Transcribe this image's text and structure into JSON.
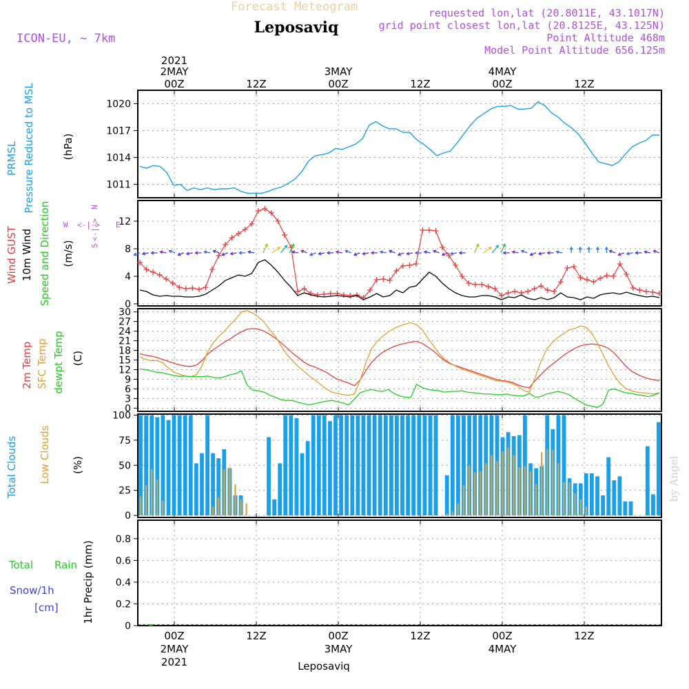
{
  "header": {
    "forecast_title": "Forecast Meteogram",
    "location": "Leposaviq",
    "model": "ICON-EU, ~ 7km",
    "requested": "requested lon,lat (20.8011E, 43.1017N)",
    "grid_point": "grid point closest lon,lat (20.8125E, 43.125N)",
    "point_altitude": "Point Altitude 468m",
    "model_altitude": "Model Point Altitude 656.125m",
    "signature": "by Angel",
    "footer_location": "Leposaviq"
  },
  "colors": {
    "pressure": "#1aa0e8",
    "gust": "#e83c3c",
    "wind": "#000000",
    "t2m": "#e83c3c",
    "sfc": "#e0a030",
    "dewpt": "#22cc22",
    "total_clouds": "#1aa0e8",
    "low_clouds": "#d4a84a",
    "rain": "#22cc22",
    "snow": "#4040e0",
    "purple": "#b050e0"
  },
  "chart_data": [
    {
      "type": "line",
      "id": "pressure",
      "ylabel_parts": [
        "PRMSL",
        "Pressure Reduced to MSL",
        "(hPa)"
      ],
      "yticks": [
        1011,
        1014,
        1017,
        1020
      ],
      "ylim": [
        1009.5,
        1021.5
      ],
      "series": [
        {
          "name": "PRMSL",
          "values": [
            1013.0,
            1012.8,
            1013.1,
            1013.0,
            1012.3,
            1010.9,
            1011.0,
            1010.3,
            1010.6,
            1010.4,
            1010.6,
            1010.4,
            1010.5,
            1010.5,
            1010.6,
            1010.2,
            1010.0,
            1010.0,
            1010.0,
            1010.2,
            1010.5,
            1010.7,
            1011.1,
            1011.6,
            1012.4,
            1013.6,
            1014.2,
            1014.3,
            1014.5,
            1015.0,
            1014.9,
            1015.2,
            1015.5,
            1016.1,
            1017.6,
            1018.0,
            1017.5,
            1017.2,
            1017.2,
            1016.8,
            1016.8,
            1016.0,
            1015.5,
            1014.9,
            1014.2,
            1014.5,
            1014.7,
            1015.6,
            1016.6,
            1017.6,
            1018.4,
            1018.9,
            1019.4,
            1019.7,
            1019.7,
            1019.8,
            1019.4,
            1019.4,
            1019.5,
            1020.2,
            1019.8,
            1019.0,
            1018.5,
            1017.8,
            1017.3,
            1016.6,
            1015.6,
            1014.5,
            1013.5,
            1013.3,
            1013.1,
            1013.5,
            1014.4,
            1015.2,
            1015.6,
            1015.9,
            1016.5,
            1016.5
          ]
        }
      ]
    },
    {
      "type": "line",
      "id": "wind",
      "ylabel_parts": [
        "Wind GUST",
        "10m Wind",
        "Speed and Direction",
        "(m/s)"
      ],
      "compass": {
        "n": "N",
        "s": "S",
        "w": "W",
        "e": "E"
      },
      "yticks": [
        0,
        4,
        8,
        12
      ],
      "ylim": [
        -0.3,
        15
      ],
      "series": [
        {
          "name": "Wind GUST",
          "values": [
            6.0,
            5.0,
            4.6,
            4.2,
            3.6,
            3.0,
            2.4,
            2.2,
            2.3,
            2.1,
            2.4,
            5.0,
            7.0,
            8.6,
            9.6,
            10.2,
            10.8,
            11.6,
            13.5,
            13.8,
            13.2,
            12.0,
            10.0,
            8.2,
            1.8,
            2.2,
            1.5,
            1.3,
            1.4,
            1.5,
            1.5,
            1.3,
            1.2,
            1.3,
            0.9,
            2.0,
            3.5,
            3.6,
            3.4,
            4.8,
            5.5,
            5.6,
            5.8,
            10.7,
            10.7,
            10.6,
            8.2,
            7.0,
            5.6,
            4.0,
            3.0,
            2.8,
            2.8,
            2.5,
            2.2,
            1.2,
            1.6,
            1.8,
            1.6,
            1.8,
            2.2,
            2.6,
            2.0,
            1.8,
            3.2,
            5.2,
            5.4,
            3.8,
            3.5,
            3.2,
            3.7,
            4.1,
            4.0,
            5.8,
            4.3,
            2.3,
            2.0,
            1.8,
            1.7,
            1.5
          ]
        },
        {
          "name": "10m Wind",
          "values": [
            2.0,
            1.8,
            1.3,
            1.1,
            1.2,
            1.1,
            1.1,
            1.0,
            1.0,
            1.1,
            1.4,
            2.0,
            2.6,
            3.4,
            3.8,
            4.2,
            4.0,
            4.4,
            6.0,
            6.4,
            5.6,
            4.6,
            3.4,
            2.4,
            1.2,
            1.6,
            1.3,
            1.1,
            1.0,
            1.1,
            1.2,
            1.1,
            1.0,
            1.2,
            0.6,
            1.0,
            1.5,
            1.0,
            1.2,
            2.0,
            1.6,
            2.4,
            2.6,
            3.6,
            4.6,
            4.0,
            3.0,
            2.2,
            1.6,
            1.2,
            1.0,
            1.0,
            1.2,
            1.2,
            1.0,
            0.6,
            1.0,
            0.9,
            1.3,
            0.8,
            0.6,
            0.9,
            0.6,
            0.9,
            1.6,
            1.0,
            0.9,
            0.6,
            1.0,
            0.8,
            1.3,
            1.5,
            1.6,
            1.4,
            1.7,
            1.4,
            1.2,
            1.0,
            1.1,
            0.9
          ]
        }
      ]
    },
    {
      "type": "line",
      "id": "temperature",
      "ylabel_parts": [
        "2m Temp",
        "SFC Temp",
        "dewpt Temp",
        "(C)"
      ],
      "yticks": [
        0,
        3,
        6,
        9,
        12,
        15,
        18,
        21,
        24,
        27,
        30
      ],
      "ylim": [
        -1,
        31
      ],
      "series": [
        {
          "name": "2m Temp",
          "values": [
            17.0,
            16.5,
            16.2,
            15.8,
            15.2,
            14.6,
            14.0,
            13.5,
            13.1,
            13.0,
            13.4,
            14.8,
            16.8,
            18.2,
            19.4,
            20.6,
            21.6,
            22.8,
            23.8,
            24.6,
            24.8,
            24.6,
            24.0,
            23.0,
            21.8,
            20.4,
            18.8,
            17.2,
            15.8,
            14.4,
            13.4,
            12.8,
            12.0,
            11.2,
            10.0,
            9.0,
            8.4,
            7.8,
            7.0,
            8.8,
            11.6,
            14.2,
            16.0,
            17.4,
            18.4,
            19.2,
            19.8,
            20.2,
            20.6,
            20.8,
            20.2,
            19.0,
            17.8,
            16.2,
            14.8,
            13.8,
            13.2,
            12.6,
            12.0,
            11.4,
            10.8,
            10.2,
            9.6,
            9.0,
            8.6,
            8.4,
            8.0,
            7.2,
            6.6,
            6.4,
            8.6,
            10.4,
            12.2,
            13.6,
            15.0,
            16.4,
            17.6,
            18.6,
            19.4,
            19.8,
            20.0,
            19.8,
            19.4,
            18.6,
            17.2,
            15.2,
            13.2,
            11.6,
            10.6,
            9.8,
            9.2,
            8.8,
            8.6
          ]
        },
        {
          "name": "SFC Temp",
          "values": [
            16.0,
            15.2,
            14.8,
            14.8,
            14.2,
            12.6,
            11.2,
            10.6,
            10.0,
            9.8,
            10.4,
            13.2,
            17.6,
            20.4,
            22.4,
            24.0,
            26.0,
            27.8,
            30.0,
            30.4,
            29.6,
            28.4,
            26.8,
            24.4,
            22.4,
            19.4,
            16.8,
            14.8,
            13.0,
            11.6,
            10.0,
            8.8,
            7.4,
            6.0,
            5.0,
            4.6,
            4.2,
            4.0,
            4.4,
            8.6,
            14.0,
            18.4,
            20.8,
            22.4,
            23.8,
            24.8,
            25.6,
            26.2,
            26.6,
            26.0,
            24.4,
            21.8,
            19.4,
            17.0,
            15.2,
            14.0,
            13.0,
            12.2,
            11.6,
            11.0,
            10.4,
            9.8,
            9.2,
            8.6,
            8.4,
            8.2,
            7.6,
            6.8,
            5.4,
            5.0,
            9.6,
            14.4,
            18.2,
            20.4,
            22.0,
            23.2,
            24.4,
            24.8,
            25.6,
            25.2,
            23.4,
            20.4,
            16.8,
            13.2,
            10.2,
            7.8,
            6.2,
            5.4,
            5.0,
            4.8,
            4.6,
            4.4,
            4.8
          ]
        },
        {
          "name": "dewpt Temp",
          "values": [
            12.2,
            12.0,
            11.6,
            11.2,
            11.0,
            10.6,
            10.2,
            9.9,
            10.0,
            9.8,
            9.8,
            9.8,
            10.0,
            9.6,
            9.4,
            9.8,
            10.4,
            10.8,
            11.6,
            7.2,
            5.6,
            5.4,
            5.0,
            4.0,
            3.4,
            2.6,
            2.4,
            2.4,
            1.8,
            1.4,
            1.0,
            1.4,
            1.8,
            2.2,
            2.4,
            2.0,
            1.6,
            1.0,
            2.8,
            4.8,
            5.4,
            5.8,
            5.4,
            5.2,
            5.8,
            4.6,
            3.8,
            3.4,
            3.4,
            7.4,
            6.4,
            5.8,
            5.6,
            5.4,
            5.0,
            5.2,
            5.2,
            5.4,
            5.0,
            4.8,
            4.6,
            4.4,
            4.4,
            4.2,
            4.2,
            4.4,
            4.0,
            3.8,
            3.8,
            4.6,
            3.4,
            3.6,
            4.4,
            4.8,
            5.2,
            4.8,
            4.2,
            3.0,
            2.0,
            1.0,
            0.6,
            0.2,
            1.2,
            5.6,
            6.0,
            5.4,
            4.8,
            4.6,
            4.2,
            4.0,
            3.6,
            4.0,
            4.8
          ]
        }
      ]
    },
    {
      "type": "bar",
      "id": "clouds",
      "ylabel_parts": [
        "Total Clouds",
        "Low Clouds",
        "(%)"
      ],
      "yticks": [
        0,
        25,
        50,
        75,
        100
      ],
      "ylim": [
        -2,
        101
      ],
      "series": [
        {
          "name": "Total Clouds",
          "values": [
            100,
            100,
            100,
            98,
            100,
            95,
            100,
            100,
            100,
            100,
            52,
            62,
            100,
            62,
            57,
            66,
            47,
            20,
            20,
            0,
            0,
            0,
            0,
            78,
            16,
            52,
            100,
            100,
            97,
            62,
            74,
            100,
            100,
            100,
            94,
            100,
            100,
            100,
            100,
            100,
            100,
            100,
            100,
            100,
            100,
            100,
            100,
            100,
            100,
            100,
            100,
            100,
            100,
            100,
            0,
            40,
            100,
            100,
            100,
            100,
            100,
            100,
            100,
            100,
            100,
            78,
            83,
            79,
            80,
            100,
            52,
            47,
            49,
            100,
            86,
            100,
            100,
            37,
            32,
            32,
            42,
            42,
            39,
            20,
            58,
            35,
            39,
            14,
            14,
            0,
            0,
            69,
            21,
            93
          ]
        },
        {
          "name": "Low Clouds",
          "values": [
            19,
            30,
            46,
            36,
            15,
            0,
            0,
            0,
            0,
            0,
            0,
            0,
            0,
            9,
            18,
            46,
            48,
            31,
            16,
            12,
            0,
            0,
            0,
            0,
            0,
            0,
            0,
            0,
            0,
            0,
            0,
            0,
            0,
            0,
            0,
            0,
            0,
            0,
            0,
            0,
            0,
            0,
            0,
            0,
            0,
            0,
            0,
            0,
            0,
            0,
            0,
            0,
            0,
            0,
            0,
            2,
            4,
            12,
            30,
            50,
            43,
            44,
            52,
            60,
            54,
            64,
            68,
            60,
            48,
            49,
            44,
            31,
            63,
            66,
            65,
            52,
            33,
            33,
            22,
            16,
            9,
            0,
            0,
            0,
            0,
            0,
            0,
            0,
            0,
            0,
            0,
            0,
            0,
            0
          ]
        }
      ]
    },
    {
      "type": "line",
      "id": "precip",
      "ylabel_parts": [
        "Total",
        "Rain",
        "Snow/1h",
        "[cm]",
        "1hr Precip (mm)"
      ],
      "yticks": [
        0,
        0.2,
        0.4,
        0.6,
        0.8
      ],
      "ytick_labels": [
        "0",
        "0.2",
        "0.4",
        "0.6",
        "0.8"
      ],
      "ylim": [
        0,
        0.97
      ],
      "series": [
        {
          "name": "Total Rain",
          "values": [
            0.0
          ]
        }
      ]
    }
  ],
  "time_axis": {
    "top": [
      {
        "line1": "2021",
        "line2": "2MAY",
        "line3": "00Z"
      },
      {
        "line1": "",
        "line2": "",
        "line3": "12Z"
      },
      {
        "line1": "",
        "line2": "3MAY",
        "line3": "00Z"
      },
      {
        "line1": "",
        "line2": "",
        "line3": "12Z"
      },
      {
        "line1": "",
        "line2": "4MAY",
        "line3": "00Z"
      },
      {
        "line1": "",
        "line2": "",
        "line3": "12Z"
      }
    ],
    "bottom": [
      {
        "line1": "00Z",
        "line2": "2MAY",
        "line3": "2021"
      },
      {
        "line1": "12Z",
        "line2": "",
        "line3": ""
      },
      {
        "line1": "00Z",
        "line2": "3MAY",
        "line3": ""
      },
      {
        "line1": "12Z",
        "line2": "",
        "line3": ""
      },
      {
        "line1": "00Z",
        "line2": "4MAY",
        "line3": ""
      },
      {
        "line1": "12Z",
        "line2": "",
        "line3": ""
      }
    ]
  }
}
